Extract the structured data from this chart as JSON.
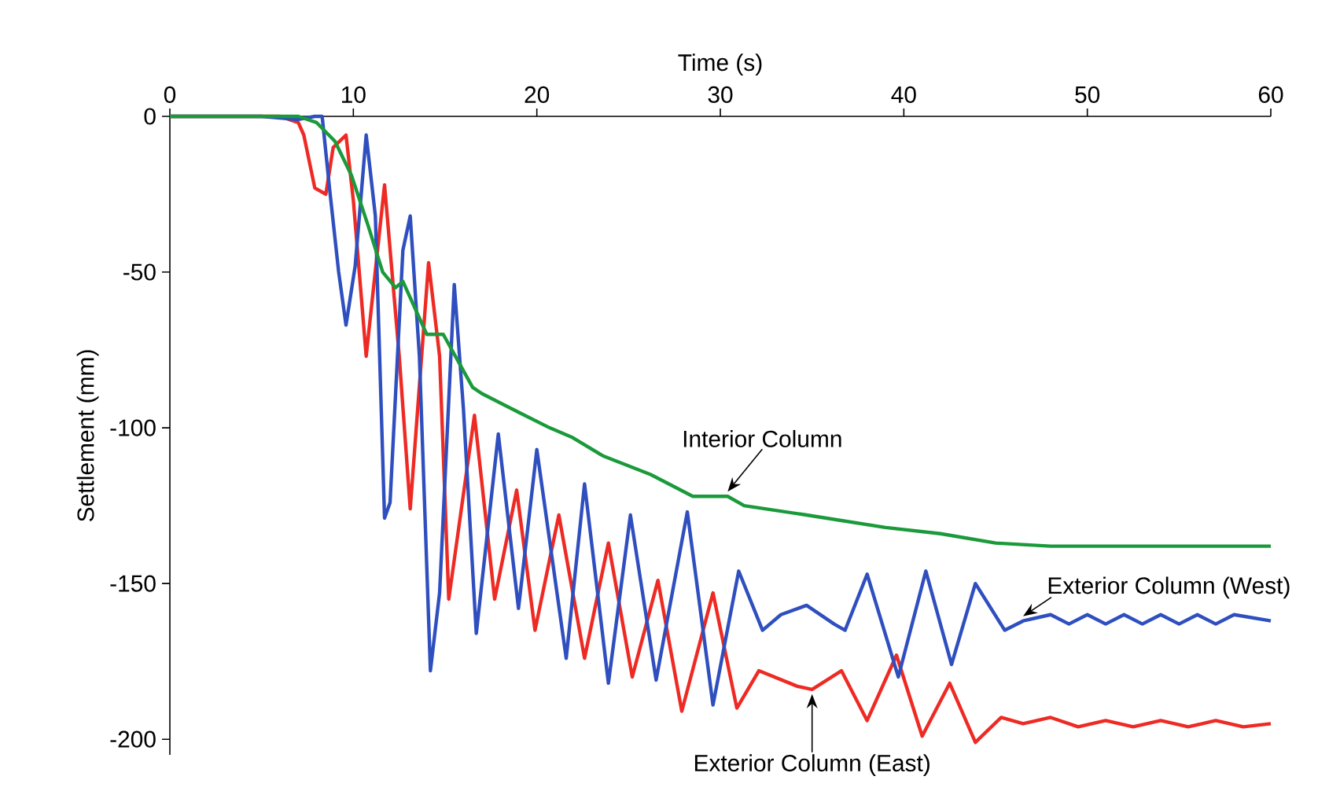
{
  "chart_data": {
    "type": "line",
    "xlabel": "Time (s)",
    "ylabel": "Settlement (mm)",
    "xlim": [
      0,
      60
    ],
    "ylim": [
      -205,
      0
    ],
    "xticks": [
      0,
      10,
      20,
      30,
      40,
      50,
      60
    ],
    "yticks": [
      0,
      -50,
      -100,
      -150,
      -200
    ],
    "grid": false,
    "legend": false,
    "series": [
      {
        "name": "Interior Column",
        "color": "#1a9a3a",
        "x": [
          0,
          7,
          8,
          9,
          9.9,
          10.8,
          11.6,
          12.3,
          12.7,
          14.0,
          14.9,
          16.5,
          17.0,
          19.0,
          20.7,
          21.9,
          23.6,
          26.2,
          28.5,
          30.4,
          31.3,
          34.7,
          39.0,
          42,
          45,
          48,
          60
        ],
        "values": [
          0,
          0,
          -2,
          -8,
          -19,
          -35,
          -50,
          -55,
          -53,
          -70,
          -70,
          -87,
          -89,
          -95,
          -100,
          -103,
          -109,
          -115,
          -122,
          -122,
          -125,
          -128,
          -132,
          -134,
          -137,
          -138,
          -138
        ]
      },
      {
        "name": "Exterior Column (West)",
        "color": "#2f4fbf",
        "x": [
          0,
          5,
          7,
          7.9,
          8.3,
          8.7,
          9.2,
          9.6,
          10.1,
          10.7,
          11.2,
          11.7,
          12.0,
          12.7,
          13.1,
          13.6,
          14.2,
          14.7,
          15.5,
          16.0,
          16.7,
          17.9,
          19.0,
          20.0,
          21.6,
          22.6,
          23.9,
          25.1,
          26.5,
          28.2,
          29.6,
          31.0,
          32.3,
          33.3,
          34.7,
          36.2,
          36.8,
          38.0,
          39.7,
          41.2,
          42.6,
          43.9,
          45.5,
          46.5,
          48,
          49,
          50,
          51,
          52,
          53,
          54,
          55,
          56,
          57,
          58,
          60
        ],
        "values": [
          0,
          0,
          -1,
          0,
          0,
          -23,
          -50,
          -67,
          -48,
          -6,
          -32,
          -129,
          -124,
          -43,
          -32,
          -77,
          -178,
          -153,
          -54,
          -94,
          -166,
          -102,
          -158,
          -107,
          -174,
          -118,
          -182,
          -128,
          -181,
          -127,
          -189,
          -146,
          -165,
          -160,
          -157,
          -163,
          -165,
          -147,
          -180,
          -146,
          -176,
          -150,
          -165,
          -162,
          -160,
          -163,
          -160,
          -163,
          -160,
          -163,
          -160,
          -163,
          -160,
          -163,
          -160,
          -162
        ]
      },
      {
        "name": "Exterior Column (East)",
        "color": "#ee2a24",
        "x": [
          0,
          6,
          7.0,
          7.3,
          7.9,
          8.5,
          8.9,
          9.6,
          10.0,
          10.7,
          11.7,
          12.5,
          13.1,
          14.1,
          14.7,
          15.2,
          16.6,
          17.7,
          18.9,
          19.9,
          21.2,
          22.6,
          23.9,
          25.2,
          26.6,
          27.9,
          29.6,
          30.9,
          32.1,
          34.2,
          35.0,
          36.6,
          38.0,
          39.6,
          41.0,
          42.5,
          43.9,
          45.3,
          46.5,
          48,
          49.5,
          51,
          52.5,
          54,
          55.5,
          57,
          58.5,
          60
        ],
        "values": [
          0,
          0,
          -2,
          -6,
          -23,
          -25,
          -10,
          -6,
          -27,
          -77,
          -22,
          -77,
          -126,
          -47,
          -77,
          -155,
          -96,
          -155,
          -120,
          -165,
          -128,
          -174,
          -137,
          -180,
          -149,
          -191,
          -153,
          -190,
          -178,
          -183,
          -184,
          -178,
          -194,
          -173,
          -199,
          -182,
          -201,
          -193,
          -195,
          -193,
          -196,
          -194,
          -196,
          -194,
          -196,
          -194,
          -196,
          -195
        ]
      }
    ]
  }
}
